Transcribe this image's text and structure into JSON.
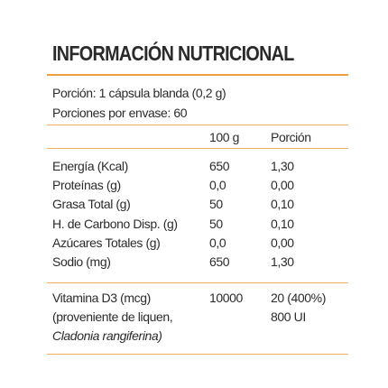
{
  "title": "INFORMACIÓN NUTRICIONAL",
  "serving": [
    "Porción: 1 cápsula blanda (0,2 g)",
    "Porciones por envase: 60"
  ],
  "table": {
    "header": {
      "per_100g": "100 g",
      "per_portion": "Porción"
    },
    "rows": [
      [
        "Energía (Kcal)",
        "650",
        "1,30"
      ],
      [
        "Proteínas (g)",
        "0,0",
        "0,00"
      ],
      [
        "Grasa Total (g)",
        "50",
        "0,10"
      ],
      [
        "H. de Carbono Disp. (g)",
        "50",
        "0,10"
      ],
      [
        "Azúcares Totales (g)",
        "0,0",
        "0,00"
      ],
      [
        "Sodio (mg)",
        "650",
        "1,30"
      ]
    ]
  },
  "vitamin": {
    "label": "Vitamina D3 (mcg)",
    "per_100g": "10000",
    "per_portion": "20 (400%)",
    "source": "(proveniente de liquen,",
    "per_portion_ui": "800 UI",
    "source_species": "Cladonia rangiferina)"
  }
}
